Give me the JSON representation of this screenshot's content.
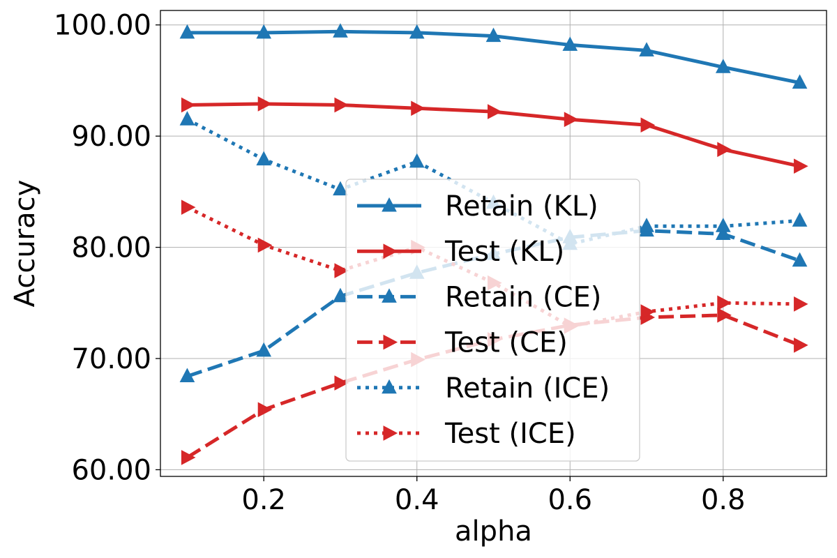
{
  "chart_data": {
    "type": "line",
    "xlabel": "alpha",
    "ylabel": "Accuracy",
    "xlim": [
      0.065,
      0.935
    ],
    "ylim": [
      59.4,
      101.3
    ],
    "xticks": [
      0.2,
      0.4,
      0.6,
      0.8
    ],
    "xtick_labels": [
      "0.2",
      "0.4",
      "0.6",
      "0.8"
    ],
    "yticks": [
      60,
      70,
      80,
      90,
      100
    ],
    "ytick_labels": [
      "60.00",
      "70.00",
      "80.00",
      "90.00",
      "100.00"
    ],
    "grid": true,
    "legend_position": "center",
    "x": [
      0.1,
      0.2,
      0.3,
      0.4,
      0.5,
      0.6,
      0.7,
      0.8,
      0.9
    ],
    "series": [
      {
        "name": "Retain (KL)",
        "color": "#1f77b4",
        "dash": "solid",
        "marker": "triangle-up",
        "values": [
          99.3,
          99.3,
          99.4,
          99.3,
          99.0,
          98.2,
          97.7,
          96.2,
          94.8
        ]
      },
      {
        "name": "Test (KL)",
        "color": "#d62728",
        "dash": "solid",
        "marker": "triangle-right",
        "values": [
          92.8,
          92.9,
          92.8,
          92.5,
          92.2,
          91.5,
          91.0,
          88.8,
          87.3
        ]
      },
      {
        "name": "Retain (CE)",
        "color": "#1f77b4",
        "dash": "dashed",
        "marker": "triangle-up",
        "values": [
          68.4,
          70.7,
          75.6,
          77.7,
          79.4,
          80.9,
          81.5,
          81.2,
          78.8
        ]
      },
      {
        "name": "Test (CE)",
        "color": "#d62728",
        "dash": "dashed",
        "marker": "triangle-right",
        "values": [
          61.1,
          65.4,
          67.8,
          69.9,
          71.7,
          73.0,
          73.7,
          73.9,
          71.2
        ]
      },
      {
        "name": "Retain (ICE)",
        "color": "#1f77b4",
        "dash": "dotted",
        "marker": "triangle-up",
        "values": [
          91.5,
          87.9,
          85.2,
          87.7,
          84.0,
          80.3,
          81.9,
          81.9,
          82.4
        ]
      },
      {
        "name": "Test (ICE)",
        "color": "#d62728",
        "dash": "dotted",
        "marker": "triangle-right",
        "values": [
          83.6,
          80.2,
          77.9,
          80.0,
          76.8,
          72.9,
          74.2,
          75.0,
          74.9
        ]
      }
    ]
  }
}
